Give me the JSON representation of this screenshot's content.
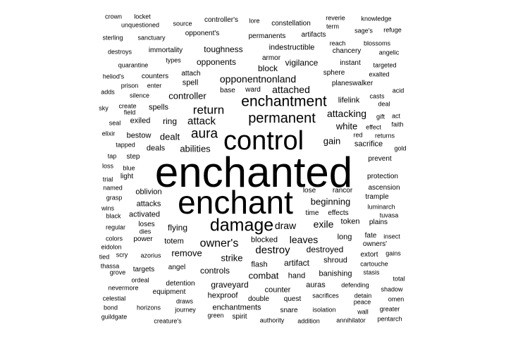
{
  "text_color": "#000000",
  "background": "#ffffff",
  "words": [
    {
      "text": "enchanted",
      "weight": 60
    },
    {
      "text": "enchant",
      "weight": 46
    },
    {
      "text": "control",
      "weight": 38
    },
    {
      "text": "damage",
      "weight": 25
    },
    {
      "text": "enchantment",
      "weight": 21
    },
    {
      "text": "permanent",
      "weight": 20
    },
    {
      "text": "aura",
      "weight": 19
    },
    {
      "text": "return",
      "weight": 17
    },
    {
      "text": "owner's",
      "weight": 16
    },
    {
      "text": "destroy",
      "weight": 15
    },
    {
      "text": "attack",
      "weight": 15
    },
    {
      "text": "attacking",
      "weight": 14
    },
    {
      "text": "leaves",
      "weight": 14
    },
    {
      "text": "exile",
      "weight": 14
    },
    {
      "text": "draw",
      "weight": 14
    },
    {
      "text": "opponentnonland",
      "weight": 14
    },
    {
      "text": "attached",
      "weight": 14
    },
    {
      "text": "abilities",
      "weight": 13
    },
    {
      "text": "dealt",
      "weight": 13
    },
    {
      "text": "white",
      "weight": 13
    },
    {
      "text": "gain",
      "weight": 13
    },
    {
      "text": "beginning",
      "weight": 13
    },
    {
      "text": "strike",
      "weight": 13
    },
    {
      "text": "remove",
      "weight": 13
    },
    {
      "text": "controller",
      "weight": 13
    },
    {
      "text": "combat",
      "weight": 13
    },
    {
      "text": "flying",
      "weight": 12
    },
    {
      "text": "block",
      "weight": 12
    },
    {
      "text": "opponents",
      "weight": 12
    },
    {
      "text": "ring",
      "weight": 12
    },
    {
      "text": "vigilance",
      "weight": 12
    },
    {
      "text": "destroyed",
      "weight": 12
    },
    {
      "text": "controls",
      "weight": 12
    },
    {
      "text": "artifact",
      "weight": 12
    },
    {
      "text": "graveyard",
      "weight": 12
    },
    {
      "text": "toughness",
      "weight": 12
    },
    {
      "text": "indestructible",
      "weight": 11
    },
    {
      "text": "spells",
      "weight": 11
    },
    {
      "text": "spell",
      "weight": 11
    },
    {
      "text": "lifelink",
      "weight": 11
    },
    {
      "text": "sacrifice",
      "weight": 11
    },
    {
      "text": "long",
      "weight": 11
    },
    {
      "text": "shroud",
      "weight": 11
    },
    {
      "text": "token",
      "weight": 11
    },
    {
      "text": "hand",
      "weight": 11
    },
    {
      "text": "counter",
      "weight": 11
    },
    {
      "text": "auras",
      "weight": 11
    },
    {
      "text": "banishing",
      "weight": 11
    },
    {
      "text": "hexproof",
      "weight": 11
    },
    {
      "text": "enchantments",
      "weight": 11
    },
    {
      "text": "oblivion",
      "weight": 11
    },
    {
      "text": "activated",
      "weight": 11
    },
    {
      "text": "attacks",
      "weight": 11
    },
    {
      "text": "deals",
      "weight": 11
    },
    {
      "text": "exiled",
      "weight": 11
    },
    {
      "text": "bestow",
      "weight": 11
    },
    {
      "text": "totem",
      "weight": 11
    },
    {
      "text": "flash",
      "weight": 11
    },
    {
      "text": "blocked",
      "weight": 11
    },
    {
      "text": "angel",
      "weight": 10
    },
    {
      "text": "targets",
      "weight": 10
    },
    {
      "text": "detention",
      "weight": 10
    },
    {
      "text": "equipment",
      "weight": 10
    },
    {
      "text": "quest",
      "weight": 10
    },
    {
      "text": "double",
      "weight": 10
    },
    {
      "text": "snare",
      "weight": 10
    },
    {
      "text": "spirit",
      "weight": 10
    },
    {
      "text": "prevent",
      "weight": 10
    },
    {
      "text": "protection",
      "weight": 10
    },
    {
      "text": "ascension",
      "weight": 10
    },
    {
      "text": "trample",
      "weight": 10
    },
    {
      "text": "rancor",
      "weight": 10
    },
    {
      "text": "lose",
      "weight": 10
    },
    {
      "text": "time",
      "weight": 10
    },
    {
      "text": "effects",
      "weight": 10
    },
    {
      "text": "plains",
      "weight": 10
    },
    {
      "text": "attach",
      "weight": 10
    },
    {
      "text": "armor",
      "weight": 10
    },
    {
      "text": "permanents",
      "weight": 10
    },
    {
      "text": "artifacts",
      "weight": 10
    },
    {
      "text": "constellation",
      "weight": 10
    },
    {
      "text": "controller's",
      "weight": 10
    },
    {
      "text": "opponent's",
      "weight": 10
    },
    {
      "text": "chancery",
      "weight": 10
    },
    {
      "text": "instant",
      "weight": 10
    },
    {
      "text": "sphere",
      "weight": 10
    },
    {
      "text": "planeswalker",
      "weight": 10
    },
    {
      "text": "immortality",
      "weight": 10
    },
    {
      "text": "counters",
      "weight": 10
    },
    {
      "text": "base",
      "weight": 10
    },
    {
      "text": "ward",
      "weight": 10
    },
    {
      "text": "power",
      "weight": 10
    },
    {
      "text": "step",
      "weight": 10
    },
    {
      "text": "light",
      "weight": 10
    },
    {
      "text": "loses",
      "weight": 10
    },
    {
      "text": "fate",
      "weight": 10
    },
    {
      "text": "owners'",
      "weight": 10
    },
    {
      "text": "extort",
      "weight": 10
    },
    {
      "text": "luminarch",
      "weight": 9
    },
    {
      "text": "defending",
      "weight": 9
    },
    {
      "text": "isolation",
      "weight": 9
    },
    {
      "text": "sacrifices",
      "weight": 9
    },
    {
      "text": "journey",
      "weight": 9
    },
    {
      "text": "draws",
      "weight": 9
    },
    {
      "text": "horizons",
      "weight": 9
    },
    {
      "text": "creature's",
      "weight": 9
    },
    {
      "text": "green",
      "weight": 9
    },
    {
      "text": "authority",
      "weight": 9
    },
    {
      "text": "addition",
      "weight": 9
    },
    {
      "text": "annihilator",
      "weight": 9
    },
    {
      "text": "pentarch",
      "weight": 9
    },
    {
      "text": "greater",
      "weight": 9
    },
    {
      "text": "wall",
      "weight": 9
    },
    {
      "text": "omen",
      "weight": 9
    },
    {
      "text": "peace",
      "weight": 9
    },
    {
      "text": "detain",
      "weight": 9
    },
    {
      "text": "shadow",
      "weight": 9
    },
    {
      "text": "total",
      "weight": 9
    },
    {
      "text": "stasis",
      "weight": 9
    },
    {
      "text": "cartouche",
      "weight": 9
    },
    {
      "text": "gains",
      "weight": 9
    },
    {
      "text": "insect",
      "weight": 9
    },
    {
      "text": "tuvasa",
      "weight": 9
    },
    {
      "text": "gold",
      "weight": 9
    },
    {
      "text": "returns",
      "weight": 9
    },
    {
      "text": "red",
      "weight": 9
    },
    {
      "text": "effect",
      "weight": 9
    },
    {
      "text": "faith",
      "weight": 9
    },
    {
      "text": "act",
      "weight": 9
    },
    {
      "text": "gift",
      "weight": 9
    },
    {
      "text": "deal",
      "weight": 9
    },
    {
      "text": "casts",
      "weight": 9
    },
    {
      "text": "acid",
      "weight": 9
    },
    {
      "text": "exalted",
      "weight": 9
    },
    {
      "text": "targeted",
      "weight": 9
    },
    {
      "text": "angelic",
      "weight": 9
    },
    {
      "text": "blossoms",
      "weight": 9
    },
    {
      "text": "reach",
      "weight": 9
    },
    {
      "text": "refuge",
      "weight": 9
    },
    {
      "text": "sage's",
      "weight": 9
    },
    {
      "text": "term",
      "weight": 9
    },
    {
      "text": "reverie",
      "weight": 9
    },
    {
      "text": "knowledge",
      "weight": 9
    },
    {
      "text": "lore",
      "weight": 9
    },
    {
      "text": "source",
      "weight": 9
    },
    {
      "text": "locket",
      "weight": 9
    },
    {
      "text": "crown",
      "weight": 9
    },
    {
      "text": "unquestioned",
      "weight": 9
    },
    {
      "text": "sterling",
      "weight": 9
    },
    {
      "text": "sanctuary",
      "weight": 9
    },
    {
      "text": "destroys",
      "weight": 9
    },
    {
      "text": "quarantine",
      "weight": 9
    },
    {
      "text": "types",
      "weight": 9
    },
    {
      "text": "heliod's",
      "weight": 9
    },
    {
      "text": "prison",
      "weight": 9
    },
    {
      "text": "enter",
      "weight": 9
    },
    {
      "text": "adds",
      "weight": 9
    },
    {
      "text": "silence",
      "weight": 9
    },
    {
      "text": "create",
      "weight": 9
    },
    {
      "text": "sky",
      "weight": 9
    },
    {
      "text": "field",
      "weight": 9
    },
    {
      "text": "seal",
      "weight": 9
    },
    {
      "text": "elixir",
      "weight": 9
    },
    {
      "text": "tapped",
      "weight": 9
    },
    {
      "text": "tap",
      "weight": 9
    },
    {
      "text": "loss",
      "weight": 9
    },
    {
      "text": "blue",
      "weight": 9
    },
    {
      "text": "trial",
      "weight": 9
    },
    {
      "text": "named",
      "weight": 9
    },
    {
      "text": "grasp",
      "weight": 9
    },
    {
      "text": "wins",
      "weight": 9
    },
    {
      "text": "black",
      "weight": 9
    },
    {
      "text": "regular",
      "weight": 9
    },
    {
      "text": "dies",
      "weight": 9
    },
    {
      "text": "colors",
      "weight": 9
    },
    {
      "text": "eidolon",
      "weight": 9
    },
    {
      "text": "scry",
      "weight": 9
    },
    {
      "text": "azorius",
      "weight": 9
    },
    {
      "text": "tied",
      "weight": 9
    },
    {
      "text": "thassa",
      "weight": 9
    },
    {
      "text": "grove",
      "weight": 9
    },
    {
      "text": "ordeal",
      "weight": 9
    },
    {
      "text": "nevermore",
      "weight": 9
    },
    {
      "text": "celestial",
      "weight": 9
    },
    {
      "text": "bond",
      "weight": 9
    },
    {
      "text": "guildgate",
      "weight": 9
    }
  ]
}
